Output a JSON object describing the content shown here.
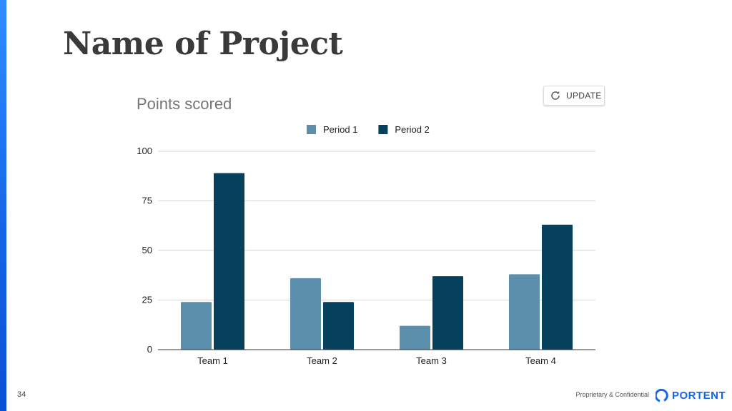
{
  "slide": {
    "title": "Name of Project",
    "page_number": "34",
    "footer_text": "Proprietary & Confidential",
    "brand_name": "PORTENT",
    "accent_color": "#1565e8"
  },
  "chart_toolbar": {
    "update_label": "UPDATE",
    "update_icon": "refresh-icon"
  },
  "chart_data": {
    "type": "bar",
    "title": "Points scored",
    "categories": [
      "Team 1",
      "Team 2",
      "Team 3",
      "Team 4"
    ],
    "series": [
      {
        "name": "Period 1",
        "color": "#5b8fab",
        "values": [
          24,
          36,
          12,
          38
        ]
      },
      {
        "name": "Period 2",
        "color": "#05415c",
        "values": [
          89,
          24,
          37,
          63
        ]
      }
    ],
    "xlabel": "",
    "ylabel": "",
    "ylim": [
      0,
      100
    ],
    "yticks": [
      0,
      25,
      50,
      75,
      100
    ],
    "grid": true,
    "legend_position": "top-center"
  }
}
